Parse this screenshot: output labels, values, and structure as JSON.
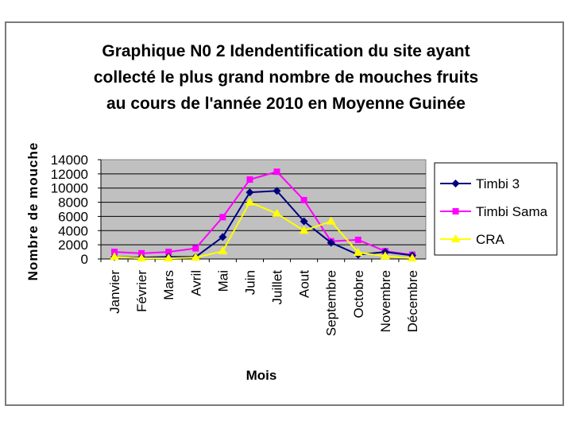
{
  "chart_data": {
    "type": "line",
    "title": [
      "Graphique N0 2 Idendentification du site ayant",
      "collecté le plus grand nombre de mouches fruits",
      "au cours de l'année 2010 en Moyenne Guinée"
    ],
    "xlabel": "Mois",
    "ylabel": "Nombre de mouche",
    "categories": [
      "Janvier",
      "Février",
      "Mars",
      "Avril",
      "Mai",
      "Juin",
      "Juillet",
      "Aout",
      "Septembre",
      "Octobre",
      "Novembre",
      "Décembre"
    ],
    "ylim": [
      0,
      14000
    ],
    "yticks": [
      "0",
      "2000",
      "4000",
      "6000",
      "8000",
      "10000",
      "12000",
      "14000"
    ],
    "grid": true,
    "legend": "right",
    "series": [
      {
        "name": "Timbi 3",
        "color": "#00007f",
        "marker": "diamond",
        "values": [
          300,
          200,
          300,
          300,
          3100,
          9400,
          9600,
          5300,
          2300,
          600,
          1000,
          500
        ]
      },
      {
        "name": "Timbi Sama",
        "color": "#ff00ff",
        "marker": "square",
        "values": [
          1000,
          800,
          1000,
          1500,
          5900,
          11200,
          12300,
          8300,
          2500,
          2700,
          1100,
          600
        ]
      },
      {
        "name": "CRA",
        "color": "#ffff00",
        "marker": "triangle",
        "values": [
          300,
          100,
          100,
          200,
          1100,
          8000,
          6400,
          4000,
          5300,
          900,
          400,
          100
        ]
      }
    ]
  }
}
